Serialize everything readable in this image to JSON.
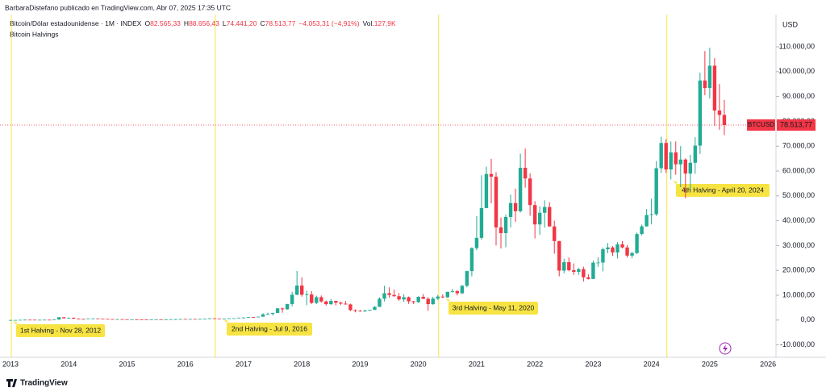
{
  "header": {
    "published": "BarbaraDistefano publicado en TradingView.com, Abr 07, 2025 17:35 UTC",
    "symbol": "Bitcoin/Dólar estadounidense · 1M · INDEX",
    "quote": [
      {
        "key": "O",
        "value": "82.565,33"
      },
      {
        "key": "H",
        "value": "88.656,43"
      },
      {
        "key": "L",
        "value": "74.441,20"
      },
      {
        "key": "C",
        "value": "78.513,77"
      }
    ],
    "change": "−4.053,31 (−4,91%)",
    "volume_key": "Vol.",
    "volume": "127,9K",
    "indicator": "Bitcoin Halvings"
  },
  "footer": {
    "brand": "TradingView"
  },
  "chart_data": {
    "type": "candlestick",
    "currency": "USD",
    "symbol": "BTCUSD",
    "last_price_label": "78.513,77",
    "up_color": "#22ab94",
    "down_color": "#f23645",
    "annotation_color": "#f7e443",
    "annotations": [
      "1st Halving - Nov 28, 2012",
      "2nd Halving - Jul 9, 2016",
      "3rd Halving - May 11, 2020",
      "4th Halving - April 20, 2024"
    ],
    "ylim": [
      -15000,
      123000
    ],
    "yticks": [
      {
        "value": -10000,
        "label": "-10.000,00"
      },
      {
        "value": 0,
        "label": "0,00"
      },
      {
        "value": 10000,
        "label": "10.000,00"
      },
      {
        "value": 20000,
        "label": "20.000,00"
      },
      {
        "value": 30000,
        "label": "30.000,00"
      },
      {
        "value": 40000,
        "label": "40.000,00"
      },
      {
        "value": 50000,
        "label": "50.000,00"
      },
      {
        "value": 60000,
        "label": "60.000,00"
      },
      {
        "value": 70000,
        "label": "70.000,00"
      },
      {
        "value": 80000,
        "label": "80.000,00"
      },
      {
        "value": 90000,
        "label": "90.000,00"
      },
      {
        "value": 100000,
        "label": "100.000,00"
      },
      {
        "value": 110000,
        "label": "110.000,00"
      }
    ],
    "categories": [
      "2013",
      null,
      null,
      null,
      null,
      null,
      null,
      null,
      null,
      null,
      null,
      null,
      "2014",
      null,
      null,
      null,
      null,
      null,
      null,
      null,
      null,
      null,
      null,
      null,
      "2015",
      null,
      null,
      null,
      null,
      null,
      null,
      null,
      null,
      null,
      null,
      null,
      "2016",
      null,
      null,
      null,
      null,
      null,
      null,
      null,
      null,
      null,
      null,
      null,
      "2017",
      null,
      null,
      null,
      null,
      null,
      null,
      null,
      null,
      null,
      null,
      null,
      "2018",
      null,
      null,
      null,
      null,
      null,
      null,
      null,
      null,
      null,
      null,
      null,
      "2019",
      null,
      null,
      null,
      null,
      null,
      null,
      null,
      null,
      null,
      null,
      null,
      "2020",
      null,
      null,
      null,
      null,
      null,
      null,
      null,
      null,
      null,
      null,
      null,
      "2021",
      null,
      null,
      null,
      null,
      null,
      null,
      null,
      null,
      null,
      null,
      null,
      "2022",
      null,
      null,
      null,
      null,
      null,
      null,
      null,
      null,
      null,
      null,
      null,
      "2023",
      null,
      null,
      null,
      null,
      null,
      null,
      null,
      null,
      null,
      null,
      null,
      "2024",
      null,
      null,
      null,
      null,
      null,
      null,
      null,
      null,
      null,
      null,
      null,
      "2025",
      null,
      null,
      null,
      null,
      null,
      null,
      null,
      null,
      null,
      null,
      null,
      "2026"
    ],
    "ohlc": [
      [
        13.5,
        21,
        13,
        20
      ],
      [
        20,
        33,
        19,
        33
      ],
      [
        33,
        95,
        33,
        93
      ],
      [
        93,
        266,
        50,
        139
      ],
      [
        139,
        140,
        79,
        129
      ],
      [
        129,
        130,
        88,
        97
      ],
      [
        97,
        110,
        65,
        106
      ],
      [
        106,
        135,
        100,
        135
      ],
      [
        135,
        140,
        110,
        133
      ],
      [
        133,
        220,
        120,
        203
      ],
      [
        203,
        1200,
        200,
        1129
      ],
      [
        1129,
        1150,
        450,
        732
      ],
      [
        732,
        1000,
        730,
        938
      ],
      [
        938,
        940,
        400,
        573
      ],
      [
        573,
        700,
        450,
        457
      ],
      [
        457,
        550,
        340,
        448
      ],
      [
        448,
        630,
        440,
        628
      ],
      [
        628,
        680,
        550,
        640
      ],
      [
        640,
        660,
        575,
        586
      ],
      [
        586,
        600,
        450,
        478
      ],
      [
        478,
        500,
        340,
        387
      ],
      [
        387,
        420,
        280,
        338
      ],
      [
        338,
        460,
        320,
        378
      ],
      [
        378,
        380,
        300,
        320
      ],
      [
        320,
        320,
        170,
        217
      ],
      [
        217,
        260,
        210,
        254
      ],
      [
        254,
        300,
        240,
        244
      ],
      [
        244,
        260,
        215,
        236
      ],
      [
        236,
        250,
        225,
        230
      ],
      [
        230,
        270,
        220,
        263
      ],
      [
        263,
        320,
        250,
        284
      ],
      [
        284,
        290,
        200,
        230
      ],
      [
        230,
        250,
        220,
        236
      ],
      [
        236,
        330,
        235,
        314
      ],
      [
        314,
        500,
        300,
        377
      ],
      [
        377,
        470,
        350,
        430
      ],
      [
        430,
        460,
        350,
        368
      ],
      [
        368,
        440,
        360,
        437
      ],
      [
        437,
        440,
        390,
        416
      ],
      [
        416,
        465,
        410,
        448
      ],
      [
        448,
        550,
        440,
        531
      ],
      [
        531,
        780,
        520,
        673
      ],
      [
        673,
        680,
        590,
        624
      ],
      [
        624,
        630,
        470,
        575
      ],
      [
        575,
        615,
        570,
        609
      ],
      [
        609,
        740,
        605,
        698
      ],
      [
        698,
        755,
        690,
        742
      ],
      [
        742,
        980,
        740,
        964
      ],
      [
        964,
        1160,
        750,
        970
      ],
      [
        970,
        1200,
        930,
        1190
      ],
      [
        1190,
        1300,
        880,
        1080
      ],
      [
        1080,
        1430,
        1070,
        1350
      ],
      [
        1350,
        2800,
        1340,
        2300
      ],
      [
        2300,
        3000,
        2100,
        2480
      ],
      [
        2480,
        2950,
        1830,
        2880
      ],
      [
        2880,
        4800,
        2700,
        4700
      ],
      [
        4700,
        5000,
        2970,
        4340
      ],
      [
        4340,
        6470,
        4100,
        6470
      ],
      [
        6470,
        11400,
        5500,
        10200
      ],
      [
        10200,
        19800,
        10000,
        13900
      ],
      [
        13900,
        17200,
        9400,
        10200
      ],
      [
        10200,
        11800,
        6000,
        10300
      ],
      [
        10300,
        11700,
        6500,
        6900
      ],
      [
        6900,
        9800,
        6400,
        9200
      ],
      [
        9200,
        9900,
        7000,
        7500
      ],
      [
        7500,
        7800,
        5800,
        6400
      ],
      [
        6400,
        8500,
        6100,
        7700
      ],
      [
        7700,
        7800,
        5900,
        7000
      ],
      [
        7000,
        7400,
        6100,
        6600
      ],
      [
        6600,
        7700,
        6200,
        6300
      ],
      [
        6300,
        6600,
        3600,
        4000
      ],
      [
        4000,
        4300,
        3100,
        3700
      ],
      [
        3700,
        4100,
        3400,
        3450
      ],
      [
        3450,
        4200,
        3400,
        3800
      ],
      [
        3800,
        4100,
        3700,
        4100
      ],
      [
        4100,
        5600,
        4050,
        5300
      ],
      [
        5300,
        9100,
        5300,
        8600
      ],
      [
        8600,
        13800,
        7500,
        10800
      ],
      [
        10800,
        13200,
        9000,
        10100
      ],
      [
        10100,
        12300,
        9400,
        9600
      ],
      [
        9600,
        10900,
        7800,
        8300
      ],
      [
        8300,
        10400,
        7300,
        9200
      ],
      [
        9200,
        9500,
        6500,
        7550
      ],
      [
        7550,
        7700,
        6400,
        7200
      ],
      [
        7200,
        9600,
        6900,
        9350
      ],
      [
        9350,
        10500,
        8500,
        8550
      ],
      [
        8550,
        9200,
        3800,
        6400
      ],
      [
        6400,
        9400,
        6150,
        8650
      ],
      [
        8650,
        10100,
        8100,
        9450
      ],
      [
        9450,
        10400,
        8900,
        9140
      ],
      [
        9140,
        11450,
        8950,
        11350
      ],
      [
        11350,
        12500,
        11100,
        11650
      ],
      [
        11650,
        12100,
        9900,
        10780
      ],
      [
        10780,
        14100,
        10500,
        13800
      ],
      [
        13800,
        19900,
        13200,
        19700
      ],
      [
        19700,
        29300,
        17600,
        28950
      ],
      [
        28950,
        41900,
        28100,
        33100
      ],
      [
        33100,
        58300,
        32300,
        45100
      ],
      [
        45100,
        61800,
        45000,
        58800
      ],
      [
        58800,
        64900,
        47000,
        57700
      ],
      [
        57700,
        59500,
        30000,
        37300
      ],
      [
        37300,
        41300,
        28800,
        35000
      ],
      [
        35000,
        42400,
        29300,
        41500
      ],
      [
        41500,
        50500,
        37300,
        47100
      ],
      [
        47100,
        52900,
        39600,
        43800
      ],
      [
        43800,
        67000,
        43300,
        61300
      ],
      [
        61300,
        69000,
        53300,
        57000
      ],
      [
        57000,
        59100,
        42000,
        46300
      ],
      [
        46300,
        47900,
        32900,
        38500
      ],
      [
        38500,
        45800,
        34300,
        43200
      ],
      [
        43200,
        48200,
        37200,
        45500
      ],
      [
        45500,
        47400,
        37600,
        37700
      ],
      [
        37700,
        40000,
        26700,
        31800
      ],
      [
        31800,
        31900,
        17600,
        19900
      ],
      [
        19900,
        24700,
        18800,
        23300
      ],
      [
        23300,
        25200,
        19600,
        20050
      ],
      [
        20050,
        22800,
        18200,
        19400
      ],
      [
        19400,
        21000,
        18200,
        20500
      ],
      [
        20500,
        21500,
        15500,
        17200
      ],
      [
        17200,
        18400,
        16300,
        16550
      ],
      [
        16550,
        23900,
        16500,
        23100
      ],
      [
        23100,
        25250,
        21400,
        23150
      ],
      [
        23150,
        29200,
        19600,
        28500
      ],
      [
        28500,
        31000,
        26900,
        29250
      ],
      [
        29250,
        29800,
        25800,
        27200
      ],
      [
        27200,
        31400,
        24800,
        30480
      ],
      [
        30480,
        31800,
        28900,
        29230
      ],
      [
        29230,
        30200,
        25200,
        25940
      ],
      [
        25940,
        27500,
        24900,
        26970
      ],
      [
        26970,
        35200,
        26600,
        34640
      ],
      [
        34640,
        38400,
        34100,
        37720
      ],
      [
        37720,
        44700,
        37600,
        42280
      ],
      [
        42280,
        48900,
        38500,
        42580
      ],
      [
        42580,
        64000,
        41900,
        61130
      ],
      [
        61130,
        73800,
        59300,
        71290
      ],
      [
        71290,
        72800,
        59200,
        60640
      ],
      [
        60640,
        71900,
        56600,
        67490
      ],
      [
        67490,
        71900,
        58500,
        62680
      ],
      [
        62680,
        70000,
        53500,
        64620
      ],
      [
        64620,
        65100,
        49000,
        58970
      ],
      [
        58970,
        66500,
        52600,
        63330
      ],
      [
        63330,
        73600,
        58900,
        70220
      ],
      [
        70220,
        99600,
        66800,
        96450
      ],
      [
        96450,
        108300,
        90500,
        93430
      ],
      [
        93430,
        109600,
        89200,
        102400
      ],
      [
        102400,
        105500,
        78200,
        84350
      ],
      [
        84350,
        95000,
        76600,
        82565.33
      ],
      [
        82565.33,
        88656.43,
        74441.2,
        78513.77
      ],
      null,
      null,
      null,
      null,
      null,
      null,
      null,
      null,
      null
    ]
  }
}
